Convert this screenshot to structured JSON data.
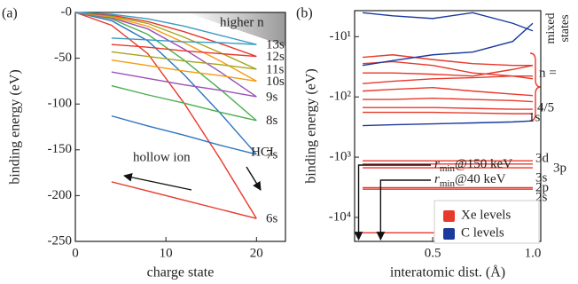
{
  "chart_data": [
    {
      "type": "line",
      "panel_label": "(a)",
      "xlabel": "charge state",
      "ylabel": "binding energy (eV)",
      "xlim": [
        0,
        23.2
      ],
      "ylim": [
        -250,
        0
      ],
      "xticks": [
        0,
        10,
        20
      ],
      "yticks": [
        {
          "value": 0,
          "label": "-0"
        },
        -50,
        -100,
        -150,
        -200,
        -250
      ],
      "annotations": [
        "higher n",
        "hollow ion",
        "HCI"
      ],
      "x": [
        0,
        4,
        8,
        12,
        16,
        20
      ],
      "hollow_x": [
        4,
        8,
        12,
        16,
        20
      ],
      "series": [
        {
          "name": "6s",
          "color": "#e8392b",
          "values": [
            0,
            -14,
            -45,
            -99,
            -160,
            -225
          ],
          "hollow_values": [
            -185,
            -195,
            -205,
            -215,
            -225
          ]
        },
        {
          "name": "7s",
          "color": "#2f74c0",
          "values": [
            0,
            -9,
            -31,
            -68,
            -110,
            -155
          ],
          "hollow_values": [
            -113,
            -124,
            -134,
            -145,
            -155
          ]
        },
        {
          "name": "8s",
          "color": "#4caf50",
          "values": [
            0,
            -7,
            -24,
            -52,
            -84,
            -118
          ],
          "hollow_values": [
            -80,
            -90,
            -99,
            -109,
            -118
          ]
        },
        {
          "name": "9s",
          "color": "#9c4fb8",
          "values": [
            0,
            -6,
            -18,
            -40,
            -65,
            -92
          ],
          "hollow_values": [
            -65,
            -72,
            -79,
            -85,
            -92
          ]
        },
        {
          "name": "10s",
          "color": "#f39c12",
          "values": [
            0,
            -5,
            -15,
            -33,
            -53,
            -75
          ],
          "hollow_values": [
            -52,
            -58,
            -64,
            -69,
            -75
          ]
        },
        {
          "name": "11s",
          "color": "#a5a51e",
          "values": [
            0,
            -4,
            -12,
            -27,
            -44,
            -62
          ],
          "hollow_values": [
            -43,
            -48,
            -53,
            -57,
            -62
          ]
        },
        {
          "name": "12s",
          "color": "#e8392b",
          "values": [
            0,
            -3,
            -10,
            -21,
            -34,
            -48
          ],
          "hollow_values": [
            -35,
            -38,
            -42,
            -45,
            -48
          ]
        },
        {
          "name": "13s",
          "color": "#3a9bc4",
          "values": [
            0,
            -2,
            -7,
            -15,
            -25,
            -35
          ],
          "hollow_values": [
            -28,
            -30,
            -32,
            -33,
            -35
          ]
        }
      ]
    },
    {
      "type": "line",
      "panel_label": "(b)",
      "xlabel": "interatomic dist. (Å)",
      "ylabel": "binding energy (eV)",
      "log_y": true,
      "xlim": [
        0.11,
        1.04
      ],
      "ylim": [
        -25000,
        -3.7
      ],
      "xticks": [
        0.5,
        {
          "value": 1,
          "label": "1.0"
        }
      ],
      "yticks": [
        {
          "value": -10,
          "label": "-10¹"
        },
        {
          "value": -100,
          "label": "-10²"
        },
        {
          "value": -1000,
          "label": "-10³"
        },
        {
          "value": -10000,
          "label": "-10⁴"
        }
      ],
      "x": [
        0.15,
        0.3,
        0.5,
        0.7,
        0.9,
        1.0
      ],
      "series": [
        {
          "name": "Xe levels",
          "color": "#e8392b",
          "lines": [
            [
              -18000,
              -18000,
              -18000,
              -18000,
              -18000,
              -18000
            ],
            [
              -3400,
              -3400,
              -3400,
              -3400,
              -3400,
              -3400
            ],
            [
              -3200,
              -3200,
              -3200,
              -3200,
              -3200,
              -3200
            ],
            [
              -1500,
              -1500,
              -1500,
              -1500,
              -1500,
              -1500
            ],
            [
              -1300,
              -1300,
              -1300,
              -1300,
              -1300,
              -1300
            ],
            [
              -1150,
              -1150,
              -1150,
              -1150,
              -1150,
              -1150
            ],
            [
              -22,
              -20,
              -24,
              -28,
              -30,
              -30
            ],
            [
              -28,
              -26,
              -30,
              -40,
              -45,
              -50
            ],
            [
              -40,
              -40,
              -42,
              -45,
              -35,
              -30
            ],
            [
              -60,
              -55,
              -50,
              -48,
              -45,
              -45
            ],
            [
              -80,
              -75,
              -70,
              -80,
              -90,
              -95
            ],
            [
              -110,
              -110,
              -105,
              -110,
              -115,
              -120
            ],
            [
              -150,
              -150,
              -150,
              -155,
              -160,
              -160
            ],
            [
              -180,
              -180,
              -180,
              -185,
              -190,
              -190
            ]
          ]
        },
        {
          "name": "C levels",
          "color": "#1a3a9c",
          "lines": [
            [
              -300,
              -290,
              -280,
              -270,
              -260,
              -250
            ],
            [
              -4,
              -4.5,
              -5,
              -4,
              -6,
              -8
            ],
            [
              -30,
              -25,
              -20,
              -18,
              -12,
              -6
            ]
          ]
        }
      ],
      "level_labels": [
        {
          "text": "3d",
          "color": "#e8392b"
        },
        {
          "text": "3p",
          "color": "#e8392b"
        },
        {
          "text": "3s",
          "color": "#e8392b"
        },
        {
          "text": "2p",
          "color": "#e8392b"
        },
        {
          "text": "2s",
          "color": "#e8392b"
        },
        {
          "text": "1s",
          "color": "#e8392b"
        },
        {
          "text": "1s",
          "color": "#1a3a9c"
        },
        {
          "text": "n =",
          "color": "#e8392b"
        },
        {
          "text": "4/5",
          "color": "#e8392b"
        }
      ],
      "mixed_label": [
        "mixed",
        "states"
      ],
      "mixed_color": "#3a9a3a",
      "rmin_annotations": [
        {
          "symbol": "r",
          "sub": "min",
          "rest": "@150 keV",
          "x": 0.13
        },
        {
          "symbol": "r",
          "sub": "min",
          "rest": "@40 keV",
          "x": 0.24
        }
      ]
    }
  ]
}
